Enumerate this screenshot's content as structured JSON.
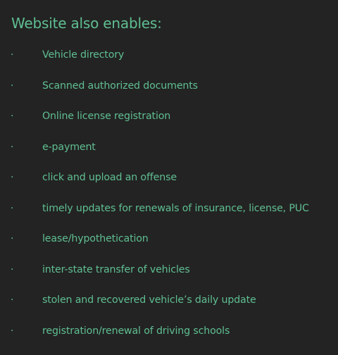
{
  "heading": "Website also enables:",
  "bullet_symbol": "·",
  "items": [
    "Vehicle directory",
    "Scanned authorized documents",
    "Online license registration",
    "e-payment",
    "click and upload an offense",
    "timely updates for renewals of insurance, license, PUC",
    "lease/hypothetication",
    "inter-state transfer of vehicles",
    "stolen and recovered vehicle’s daily update",
    "registration/renewal of driving schools"
  ],
  "colors": {
    "background": "#232323",
    "text": "#5fbf92"
  }
}
